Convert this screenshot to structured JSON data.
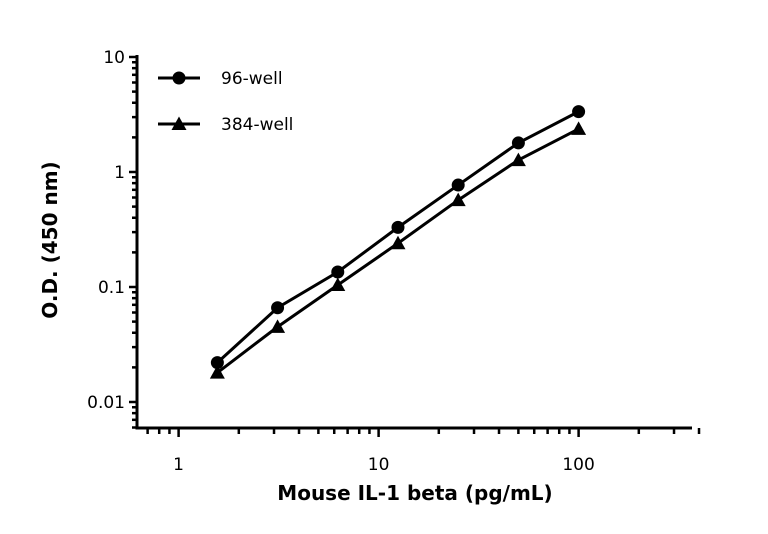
{
  "chart_data": {
    "type": "line",
    "title": "",
    "xlabel": "Mouse IL-1 beta (pg/mL)",
    "ylabel": "O.D. (450 nm)",
    "xscale": "log",
    "yscale": "log",
    "xlim": [
      0.65,
      400
    ],
    "ylim": [
      0.006,
      10
    ],
    "xticks": [
      1,
      10,
      100
    ],
    "xtick_labels": [
      "1",
      "10",
      "100"
    ],
    "yticks": [
      0.01,
      0.1,
      1,
      10
    ],
    "ytick_labels": [
      "0.01",
      "0.1",
      "1",
      "10"
    ],
    "grid": false,
    "legend": "top-left",
    "x": [
      1.5625,
      3.125,
      6.25,
      12.5,
      25,
      50,
      100
    ],
    "series": [
      {
        "name": "96-well",
        "marker": "circle",
        "color": "#000000",
        "values": [
          0.022,
          0.066,
          0.135,
          0.33,
          0.77,
          1.79,
          3.35
        ]
      },
      {
        "name": "384-well",
        "marker": "triangle",
        "color": "#000000",
        "values": [
          0.018,
          0.045,
          0.104,
          0.24,
          0.57,
          1.27,
          2.37
        ]
      }
    ]
  }
}
